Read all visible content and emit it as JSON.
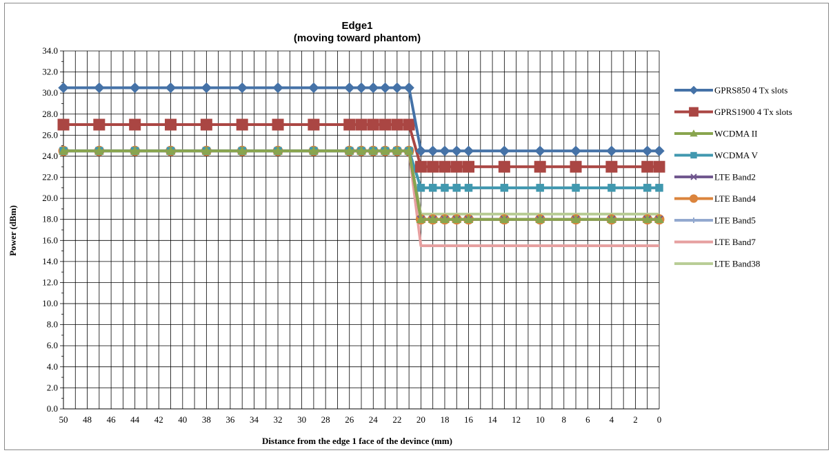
{
  "chart_data": {
    "type": "line",
    "title_line1": "Edge1",
    "title_line2": "(moving toward phantom)",
    "xlabel": "Distance from the edge 1 face of the devince (mm)",
    "ylabel": "Power (dBm)",
    "ylim": [
      0,
      34
    ],
    "ytick_step": 2,
    "xlim": [
      50,
      0
    ],
    "xtick_labels": [
      50,
      48,
      46,
      44,
      42,
      40,
      38,
      36,
      34,
      32,
      30,
      28,
      26,
      24,
      22,
      20,
      18,
      16,
      14,
      12,
      10,
      8,
      6,
      4,
      2,
      0
    ],
    "grid": true,
    "legend_position": "right",
    "x": [
      50,
      47,
      44,
      41,
      38,
      35,
      32,
      29,
      26,
      25,
      24,
      23,
      22,
      21,
      20,
      19,
      18,
      17,
      16,
      13,
      10,
      7,
      4,
      1,
      0
    ],
    "series": [
      {
        "name": "GPRS850 4 Tx slots",
        "color": "#4572A7",
        "marker": "diamond",
        "values": [
          30.5,
          30.5,
          30.5,
          30.5,
          30.5,
          30.5,
          30.5,
          30.5,
          30.5,
          30.5,
          30.5,
          30.5,
          30.5,
          30.5,
          24.5,
          24.5,
          24.5,
          24.5,
          24.5,
          24.5,
          24.5,
          24.5,
          24.5,
          24.5,
          24.5
        ]
      },
      {
        "name": "GPRS1900 4 Tx slots",
        "color": "#AA4643",
        "marker": "square",
        "values": [
          27,
          27,
          27,
          27,
          27,
          27,
          27,
          27,
          27,
          27,
          27,
          27,
          27,
          27,
          23,
          23,
          23,
          23,
          23,
          23,
          23,
          23,
          23,
          23,
          23
        ]
      },
      {
        "name": "WCDMA II",
        "color": "#89A54E",
        "marker": "triangle",
        "values": [
          24.5,
          24.5,
          24.5,
          24.5,
          24.5,
          24.5,
          24.5,
          24.5,
          24.5,
          24.5,
          24.5,
          24.5,
          24.5,
          24.5,
          18,
          18,
          18,
          18,
          18,
          18,
          18,
          18,
          18,
          18,
          18
        ]
      },
      {
        "name": "WCDMA V",
        "color": "#4198AF",
        "marker": "square-small",
        "values": [
          24.5,
          24.5,
          24.5,
          24.5,
          24.5,
          24.5,
          24.5,
          24.5,
          24.5,
          24.5,
          24.5,
          24.5,
          24.5,
          24.5,
          21,
          21,
          21,
          21,
          21,
          21,
          21,
          21,
          21,
          21,
          21
        ]
      },
      {
        "name": "LTE Band2",
        "color": "#71588F",
        "marker": "x",
        "values": [
          24.5,
          24.5,
          24.5,
          24.5,
          24.5,
          24.5,
          24.5,
          24.5,
          24.5,
          24.5,
          24.5,
          24.5,
          24.5,
          24.5,
          18,
          18,
          18,
          18,
          18,
          18,
          18,
          18,
          18,
          18,
          18
        ]
      },
      {
        "name": "LTE Band4",
        "color": "#DB843D",
        "marker": "circle",
        "values": [
          24.5,
          24.5,
          24.5,
          24.5,
          24.5,
          24.5,
          24.5,
          24.5,
          24.5,
          24.5,
          24.5,
          24.5,
          24.5,
          24.5,
          18,
          18,
          18,
          18,
          18,
          18,
          18,
          18,
          18,
          18,
          18
        ]
      },
      {
        "name": "LTE Band5",
        "color": "#93A9CF",
        "marker": "plus",
        "values": [
          24.5,
          24.5,
          24.5,
          24.5,
          24.5,
          24.5,
          24.5,
          24.5,
          24.5,
          24.5,
          24.5,
          24.5,
          24.5,
          24.5,
          21,
          21,
          21,
          21,
          21,
          21,
          21,
          21,
          21,
          21,
          21
        ]
      },
      {
        "name": "LTE Band7",
        "color": "#E6A0A0",
        "marker": "none",
        "values": [
          24.5,
          24.5,
          24.5,
          24.5,
          24.5,
          24.5,
          24.5,
          24.5,
          24.5,
          24.5,
          24.5,
          24.5,
          24.5,
          24.5,
          15.5,
          15.5,
          15.5,
          15.5,
          15.5,
          15.5,
          15.5,
          15.5,
          15.5,
          15.5,
          15.5
        ]
      },
      {
        "name": "LTE Band38",
        "color": "#B9CD96",
        "marker": "none",
        "values": [
          24.5,
          24.5,
          24.5,
          24.5,
          24.5,
          24.5,
          24.5,
          24.5,
          24.5,
          24.5,
          24.5,
          24.5,
          24.5,
          24.5,
          18.5,
          18.5,
          18.5,
          18.5,
          18.5,
          18.5,
          18.5,
          18.5,
          18.5,
          18.5,
          18.5
        ]
      }
    ]
  }
}
